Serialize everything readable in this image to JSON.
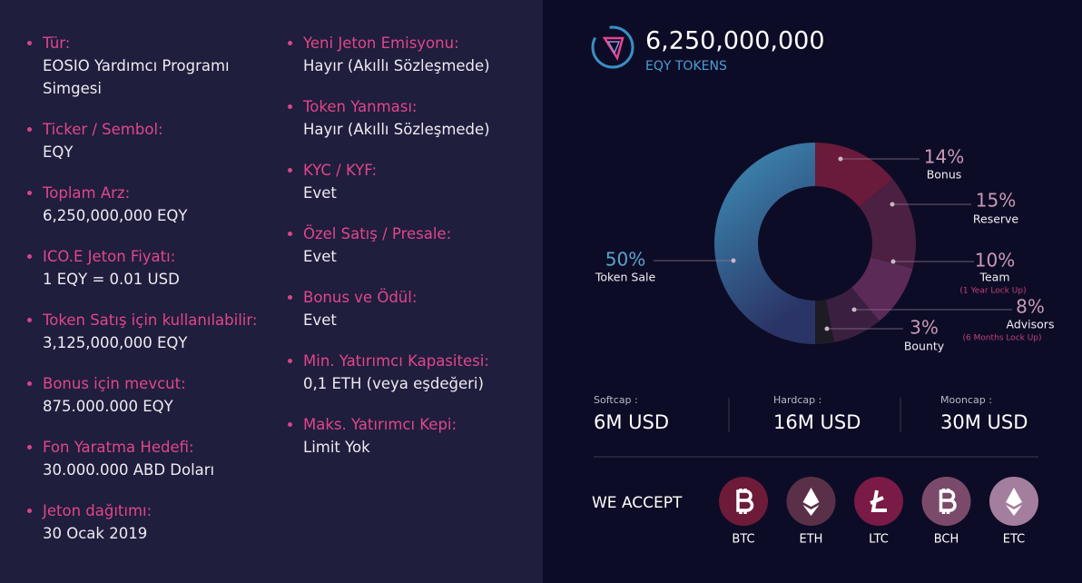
{
  "token_info": {
    "columns": [
      [
        {
          "label": "Tür:",
          "value": "EOSIO Yardımcı Programı Simgesi"
        },
        {
          "label": "Ticker / Sembol:",
          "value": "EQY"
        },
        {
          "label": "Toplam Arz:",
          "value": "6,250,000,000 EQY"
        },
        {
          "label": "ICO.E Jeton Fiyatı:",
          "value": "1 EQY = 0.01 USD"
        },
        {
          "label": "Token Satış için kullanılabilir:",
          "value": "3,125,000,000 EQY"
        },
        {
          "label": "Bonus için mevcut:",
          "value": "875.000.000 EQY"
        },
        {
          "label": "Fon Yaratma Hedefi:",
          "value": "30.000.000 ABD Doları"
        },
        {
          "label": "Jeton dağıtımı:",
          "value": "30 Ocak 2019"
        }
      ],
      [
        {
          "label": "Yeni Jeton Emisyonu:",
          "value": "Hayır (Akıllı Sözleşmede)"
        },
        {
          "label": "Token Yanması:",
          "value": "Hayır (Akıllı Sözleşmede)"
        },
        {
          "label": "KYC / KYF:",
          "value": "Evet"
        },
        {
          "label": "Özel Satış / Presale:",
          "value": "Evet"
        },
        {
          "label": "Bonus ve Ödül:",
          "value": "Evet"
        },
        {
          "label": "Min. Yatırımcı Kapasitesi:",
          "value": "0,1 ETH (veya eşdeğeri)"
        },
        {
          "label": "Maks. Yatırımcı Kepi:",
          "value": "Limit Yok"
        }
      ]
    ]
  },
  "supply": {
    "amount": "6,250,000,000",
    "unit": "EQY TOKENS"
  },
  "chart_data": {
    "type": "pie",
    "categories": [
      "Bonus",
      "Reserve",
      "Team",
      "Advisors",
      "Bounty",
      "Token Sale"
    ],
    "values": [
      14,
      15,
      10,
      8,
      3,
      50
    ],
    "value_labels": [
      "14%",
      "15%",
      "10%",
      "8%",
      "3%",
      "50%"
    ],
    "sublabels": [
      null,
      null,
      "(1 Year Lock Up)",
      "(6 Months Lock Up)",
      null,
      null
    ],
    "colors": [
      "#6a1a3a",
      "#4c2043",
      "#5b2a56",
      "#3b1f40",
      "#1d1b24",
      "url(#gsale)"
    ]
  },
  "caps": [
    {
      "label": "Softcap :",
      "value": "6M USD"
    },
    {
      "label": "Hardcap :",
      "value": "16M USD"
    },
    {
      "label": "Mooncap :",
      "value": "30M USD"
    }
  ],
  "accept": {
    "title": "WE ACCEPT",
    "coins": [
      "BTC",
      "ETH",
      "LTC",
      "BCH",
      "ETC"
    ]
  }
}
